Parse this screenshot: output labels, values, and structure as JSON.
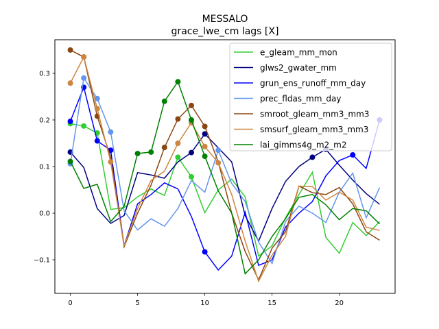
{
  "chart_data": {
    "type": "line",
    "title": "MESSALO",
    "subtitle": "grace_lwe_cm lags [X]",
    "xlabel": "",
    "ylabel": "",
    "xlim": [
      -1.15,
      24.15
    ],
    "ylim": [
      -0.172,
      0.372
    ],
    "xticks": [
      0,
      5,
      10,
      15,
      20
    ],
    "yticks": [
      -0.1,
      0.0,
      0.1,
      0.2,
      0.3
    ],
    "ytick_labels": [
      "−0.1",
      "0.0",
      "0.1",
      "0.2",
      "0.3"
    ],
    "legend_position": "top-right",
    "x": [
      0,
      1,
      2,
      3,
      4,
      5,
      6,
      7,
      8,
      9,
      10,
      11,
      12,
      13,
      14,
      15,
      16,
      17,
      18,
      19,
      20,
      21,
      22,
      23
    ],
    "series": [
      {
        "name": "e_gleam_mm_mon",
        "color": "#32cd32",
        "values": [
          0.192,
          0.187,
          0.172,
          0.008,
          0.012,
          0.035,
          0.052,
          0.038,
          0.12,
          0.078,
          0.001,
          0.05,
          0.073,
          0.035,
          -0.092,
          -0.07,
          -0.01,
          0.04,
          0.088,
          -0.052,
          -0.086,
          -0.02,
          -0.048,
          -0.018
        ],
        "markers": [
          0,
          1,
          2,
          8,
          9
        ]
      },
      {
        "name": "glws2_gwater_mm",
        "color": "#000080",
        "values": [
          0.131,
          0.098,
          0.01,
          -0.022,
          -0.005,
          0.087,
          0.082,
          0.075,
          0.11,
          0.13,
          0.17,
          0.14,
          0.11,
          -0.005,
          -0.06,
          0.01,
          0.068,
          0.1,
          0.12,
          0.137,
          0.103,
          0.071,
          0.042,
          0.019
        ],
        "markers": [
          0,
          9,
          10,
          18,
          19
        ]
      },
      {
        "name": "grun_ens_runoff_mm_day",
        "color": "#0000ff",
        "values": [
          0.197,
          0.27,
          0.155,
          0.135,
          -0.07,
          0.02,
          0.04,
          0.065,
          0.052,
          -0.007,
          -0.083,
          -0.122,
          -0.092,
          0.002,
          -0.112,
          -0.1,
          -0.03,
          0.0,
          0.025,
          0.08,
          0.113,
          0.125,
          0.096,
          0.2
        ],
        "markers": [
          0,
          1,
          2,
          3,
          10,
          21,
          23
        ]
      },
      {
        "name": "prec_fldas_mm_day",
        "color": "#6495ed",
        "values": [
          0.106,
          0.29,
          0.246,
          0.174,
          0.005,
          -0.036,
          -0.012,
          -0.028,
          0.01,
          0.07,
          0.045,
          0.135,
          0.064,
          0.025,
          -0.062,
          -0.108,
          -0.018,
          0.015,
          0.0,
          -0.02,
          0.045,
          0.086,
          -0.01,
          0.055
        ],
        "markers": [
          0,
          1,
          2,
          3,
          11
        ]
      },
      {
        "name": "smroot_gleam_mm3_mm3",
        "color": "#8b4513",
        "values": [
          0.35,
          0.335,
          0.208,
          0.12,
          -0.072,
          0.0,
          0.06,
          0.141,
          0.202,
          0.231,
          0.186,
          0.11,
          0.0,
          -0.082,
          -0.143,
          -0.075,
          -0.04,
          0.058,
          0.044,
          0.04,
          0.055,
          0.02,
          -0.04,
          -0.058
        ],
        "markers": [
          0,
          1,
          2,
          7,
          8,
          9,
          10
        ]
      },
      {
        "name": "smsurf_gleam_mm3_mm3",
        "color": "#cd853f",
        "values": [
          0.279,
          0.335,
          0.224,
          0.11,
          -0.07,
          0.01,
          0.07,
          0.09,
          0.15,
          0.194,
          0.143,
          0.108,
          0.04,
          -0.06,
          -0.146,
          -0.09,
          -0.05,
          0.058,
          0.057,
          0.028,
          0.045,
          0.028,
          -0.03,
          -0.037
        ],
        "markers": [
          0,
          1,
          2,
          3,
          8,
          9,
          10,
          11
        ]
      },
      {
        "name": "lai_gimms4g_m2_m2",
        "color": "#008000",
        "values": [
          0.111,
          0.053,
          0.062,
          -0.018,
          0.015,
          0.128,
          0.131,
          0.24,
          0.282,
          0.2,
          0.122,
          0.048,
          0.0,
          -0.13,
          -0.1,
          -0.05,
          -0.012,
          0.034,
          0.04,
          0.018,
          -0.014,
          0.01,
          0.005,
          -0.023
        ],
        "markers": [
          0,
          5,
          6,
          7,
          8,
          9,
          10
        ]
      }
    ]
  }
}
